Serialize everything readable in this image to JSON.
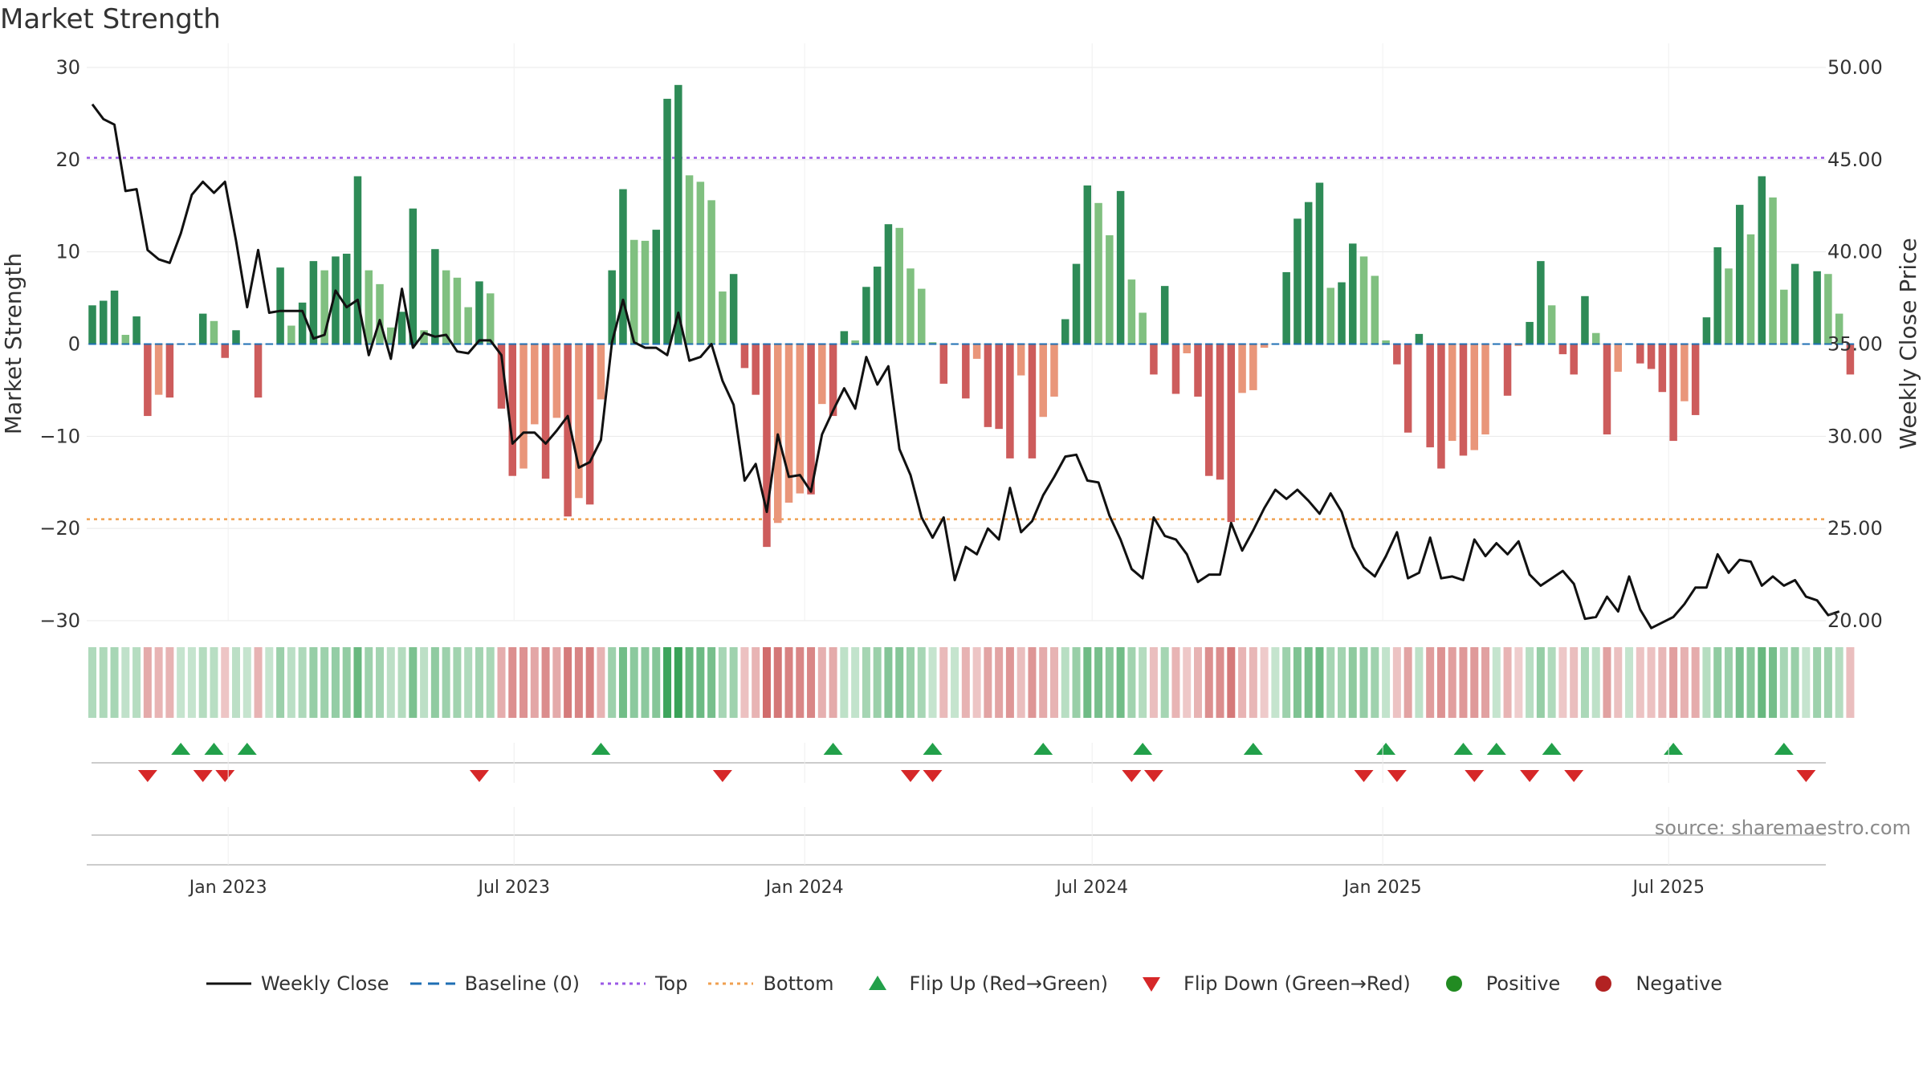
{
  "page": {
    "title": "Market Strength",
    "source": "source: sharemaestro.com"
  },
  "colors": {
    "strong_pos": "#2e8b57",
    "weak_pos": "#80c080",
    "strong_neg": "#cd5c5c",
    "weak_neg": "#e9967a",
    "close_line": "#111111",
    "baseline": "#1f6fb4",
    "top_line": "#9b59e6",
    "bottom_line": "#f0a050",
    "flip_up": "#22a04a",
    "flip_down": "#d62728",
    "positive": "#228b22",
    "negative": "#b22222"
  },
  "chart_data": {
    "type": "bar+line",
    "title": "Market Strength",
    "left_axis": {
      "label": "Market Strength",
      "ylim": [
        -30,
        30
      ],
      "ticks": [
        30,
        20,
        10,
        0,
        -10,
        -20,
        -30
      ],
      "tick_labels": [
        "30",
        "20",
        "10",
        "0",
        "−10",
        "−20",
        "−30"
      ]
    },
    "right_axis": {
      "label": "Weekly Close Price",
      "ylim": [
        20,
        50
      ],
      "ticks": [
        50,
        45,
        40,
        35,
        30,
        25,
        20
      ],
      "tick_labels": [
        "50.00",
        "45.00",
        "40.00",
        "35.00",
        "30.00",
        "25.00",
        "20.00"
      ]
    },
    "x_axis": {
      "start": "2022-10-07",
      "weeks": 158,
      "date_ticks": [
        {
          "date": "2023-01-01",
          "label": "Jan 2023"
        },
        {
          "date": "2023-07-01",
          "label": "Jul 2023"
        },
        {
          "date": "2024-01-01",
          "label": "Jan 2024"
        },
        {
          "date": "2024-07-01",
          "label": "Jul 2024"
        },
        {
          "date": "2025-01-01",
          "label": "Jan 2025"
        },
        {
          "date": "2025-07-01",
          "label": "Jul 2025"
        }
      ]
    },
    "reference_lines": {
      "top": 20.2,
      "bottom": -19,
      "baseline": 0
    },
    "strength": [
      4.2,
      4.7,
      5.8,
      1.0,
      3.0,
      -7.8,
      -5.5,
      -5.8,
      0,
      0,
      3.3,
      2.5,
      -1.5,
      1.5,
      0,
      -5.8,
      0,
      8.3,
      2.0,
      4.5,
      9.0,
      8.0,
      9.5,
      9.8,
      18.2,
      8.0,
      6.5,
      1.8,
      3.5,
      14.7,
      1.5,
      10.3,
      8.0,
      7.2,
      4.0,
      6.8,
      5.5,
      -7.0,
      -14.3,
      -13.5,
      -8.7,
      -14.6,
      -8.0,
      -18.7,
      -16.7,
      -17.4,
      -6.0,
      8.0,
      16.8,
      11.3,
      11.2,
      12.4,
      26.6,
      28.1,
      18.3,
      17.6,
      15.6,
      5.7,
      7.6,
      -2.6,
      -5.5,
      -22.0,
      -19.4,
      -17.2,
      -16.2,
      -16.3,
      -6.5,
      -7.8,
      1.4,
      0.4,
      6.2,
      8.4,
      13.0,
      12.6,
      8.2,
      6.0,
      0.2,
      -4.3,
      0,
      -5.9,
      -1.6,
      -9.0,
      -9.2,
      -12.4,
      -3.4,
      -12.4,
      -7.9,
      -5.7,
      2.7,
      8.7,
      17.2,
      15.3,
      11.8,
      16.6,
      7.0,
      3.4,
      -3.3,
      6.3,
      -5.4,
      -1.0,
      -5.7,
      -14.3,
      -14.7,
      -19.3,
      -5.3,
      -5.0,
      -0.4,
      0,
      7.8,
      13.6,
      15.4,
      17.5,
      6.1,
      6.7,
      10.9,
      9.5,
      7.4,
      0.4,
      -2.2,
      -9.6,
      1.1,
      -11.2,
      -13.5,
      -10.5,
      -12.1,
      -11.5,
      -9.8,
      0,
      -5.6,
      -0.2,
      2.4,
      9.0,
      4.2,
      -1.1,
      -3.3,
      5.2,
      1.2,
      -9.8,
      -3.0,
      0,
      -2.1,
      -2.7,
      -5.2,
      -10.5,
      -6.2,
      -7.7,
      2.9,
      10.5,
      8.2,
      15.1,
      11.9,
      18.2,
      15.9,
      5.9,
      8.7,
      0,
      7.9,
      7.6,
      3.3,
      -3.3
    ],
    "weekly_close": [
      48.0,
      47.2,
      46.9,
      43.3,
      43.4,
      40.1,
      39.6,
      39.4,
      41.0,
      43.1,
      43.8,
      43.2,
      43.8,
      40.6,
      37.0,
      40.1,
      36.7,
      36.8,
      36.8,
      36.8,
      35.3,
      35.5,
      37.9,
      37.0,
      37.4,
      34.4,
      36.3,
      34.2,
      38.0,
      34.8,
      35.6,
      35.4,
      35.5,
      34.6,
      34.5,
      35.2,
      35.2,
      34.4,
      29.6,
      30.2,
      30.2,
      29.6,
      30.3,
      31.1,
      28.3,
      28.6,
      29.8,
      35.1,
      37.4,
      35.1,
      34.8,
      34.8,
      34.4,
      36.7,
      34.1,
      34.3,
      35.0,
      33.0,
      31.7,
      27.6,
      28.5,
      25.9,
      30.1,
      27.8,
      27.9,
      27.0,
      30.1,
      31.4,
      32.6,
      31.5,
      34.3,
      32.8,
      33.8,
      29.3,
      27.9,
      25.6,
      24.5,
      25.6,
      22.2,
      24.0,
      23.6,
      25.0,
      24.4,
      27.2,
      24.8,
      25.4,
      26.8,
      27.8,
      28.9,
      29.0,
      27.6,
      27.5,
      25.7,
      24.4,
      22.8,
      22.3,
      25.6,
      24.6,
      24.4,
      23.6,
      22.1,
      22.5,
      22.5,
      25.3,
      23.8,
      24.9,
      26.1,
      27.1,
      26.6,
      27.1,
      26.5,
      25.8,
      26.9,
      25.9,
      24.0,
      22.9,
      22.4,
      23.5,
      24.8,
      22.3,
      22.6,
      24.5,
      22.3,
      22.4,
      22.2,
      24.4,
      23.5,
      24.2,
      23.6,
      24.3,
      22.5,
      21.9,
      22.3,
      22.7,
      22.0,
      20.1,
      20.2,
      21.3,
      20.5,
      22.4,
      20.6,
      19.6,
      19.9,
      20.2,
      20.9,
      21.8,
      21.8,
      23.6,
      22.6,
      23.3,
      23.2,
      21.9,
      22.4,
      21.9,
      22.2,
      21.3,
      21.1,
      20.3,
      20.5
    ],
    "flip_up_weeks": [
      8,
      11,
      14,
      46,
      67,
      76,
      86,
      95,
      105,
      117,
      124,
      127,
      132,
      143,
      153
    ],
    "flip_down_weeks": [
      5,
      10,
      12,
      35,
      57,
      74,
      76,
      94,
      96,
      115,
      118,
      125,
      130,
      134,
      155
    ],
    "legend": [
      "Weekly Close",
      "Baseline (0)",
      "Top",
      "Bottom",
      "Flip Up (Red→Green)",
      "Flip Down (Green→Red)",
      "Positive",
      "Negative"
    ],
    "legend_placement": "bottom-center"
  }
}
